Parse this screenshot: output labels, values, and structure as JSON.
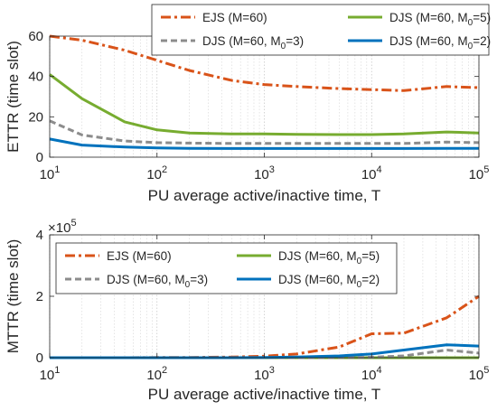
{
  "chart_data": [
    {
      "type": "line",
      "xscale": "log",
      "xlabel": "PU average active/inactive time, T",
      "ylabel": "ETTR (time slot)",
      "xlim": [
        10,
        100000
      ],
      "ylim": [
        0,
        60
      ],
      "xticks": [
        10,
        100,
        1000,
        10000,
        100000
      ],
      "xtick_labels": [
        {
          "base": "10",
          "exp": "1"
        },
        {
          "base": "10",
          "exp": "2"
        },
        {
          "base": "10",
          "exp": "3"
        },
        {
          "base": "10",
          "exp": "4"
        },
        {
          "base": "10",
          "exp": "5"
        }
      ],
      "yticks": [
        0,
        20,
        40,
        60
      ],
      "ytick_labels": [
        "0",
        "20",
        "40",
        "60"
      ],
      "grid": "x-major-and-minor",
      "legend_placement": "top (overlapping plot)",
      "legend_columns": 2,
      "series": [
        {
          "name": "EJS (M=60)",
          "name_base": "EJS (M=60)",
          "name_sub": "",
          "name_tail": "",
          "color": "#D95319",
          "style": "dash-dot",
          "x": [
            10,
            20,
            50,
            100,
            200,
            500,
            1000,
            2000,
            5000,
            10000,
            20000,
            50000,
            100000
          ],
          "y": [
            63,
            58,
            53,
            48,
            43,
            38,
            36,
            35,
            34,
            33.5,
            33,
            35,
            34.5
          ]
        },
        {
          "name": "DJS (M=60, M0=5)",
          "name_base": "DJS (M=60, M",
          "name_sub": "0",
          "name_tail": "=5)",
          "color": "#77AC30",
          "style": "solid",
          "x": [
            10,
            20,
            50,
            100,
            200,
            500,
            1000,
            2000,
            5000,
            10000,
            20000,
            50000,
            100000
          ],
          "y": [
            41,
            29,
            17.5,
            13.5,
            12,
            11.5,
            11.5,
            11.3,
            11.2,
            11.2,
            11.5,
            12.5,
            12
          ]
        },
        {
          "name": "DJS (M=60, M0=3)",
          "name_base": "DJS (M=60, M",
          "name_sub": "0",
          "name_tail": "=3)",
          "color": "#8C8C8C",
          "style": "dashed",
          "x": [
            10,
            20,
            50,
            100,
            200,
            500,
            1000,
            2000,
            5000,
            10000,
            20000,
            50000,
            100000
          ],
          "y": [
            18,
            11,
            8,
            7.2,
            7,
            6.8,
            6.8,
            6.8,
            6.8,
            6.8,
            6.8,
            7.5,
            7.2
          ]
        },
        {
          "name": "DJS (M=60, M0=2)",
          "name_base": "DJS (M=60, M",
          "name_sub": "0",
          "name_tail": "=2)",
          "color": "#0072BD",
          "style": "solid",
          "x": [
            10,
            20,
            50,
            100,
            200,
            500,
            1000,
            2000,
            5000,
            10000,
            20000,
            50000,
            100000
          ],
          "y": [
            9,
            6,
            5,
            4.6,
            4.4,
            4.3,
            4.3,
            4.3,
            4.3,
            4.3,
            4.3,
            4.4,
            4.4
          ]
        }
      ]
    },
    {
      "type": "line",
      "xscale": "log",
      "xlabel": "PU average active/inactive time, T",
      "ylabel": "MTTR (time slot)",
      "xlim": [
        10,
        100000
      ],
      "ylim": [
        0,
        400000
      ],
      "exponent_label": {
        "base": "×10",
        "exp": "5"
      },
      "xticks": [
        10,
        100,
        1000,
        10000,
        100000
      ],
      "xtick_labels": [
        {
          "base": "10",
          "exp": "1"
        },
        {
          "base": "10",
          "exp": "2"
        },
        {
          "base": "10",
          "exp": "3"
        },
        {
          "base": "10",
          "exp": "4"
        },
        {
          "base": "10",
          "exp": "5"
        }
      ],
      "yticks": [
        0,
        200000,
        400000
      ],
      "ytick_labels": [
        "0",
        "2",
        "4"
      ],
      "grid": "x-major-and-minor",
      "legend_placement": "upper-left",
      "legend_columns": 2,
      "series": [
        {
          "name": "EJS (M=60)",
          "name_base": "EJS (M=60)",
          "name_sub": "",
          "name_tail": "",
          "color": "#D95319",
          "style": "dash-dot",
          "x": [
            10,
            20,
            50,
            100,
            200,
            500,
            1000,
            2000,
            5000,
            10000,
            20000,
            50000,
            100000
          ],
          "y": [
            0,
            0,
            0,
            500,
            1000,
            2000,
            5000,
            12000,
            35000,
            78000,
            80000,
            130000,
            200000
          ]
        },
        {
          "name": "DJS (M=60, M0=5)",
          "name_base": "DJS (M=60, M",
          "name_sub": "0",
          "name_tail": "=5)",
          "color": "#77AC30",
          "style": "solid",
          "x": [
            10,
            20,
            50,
            100,
            200,
            500,
            1000,
            2000,
            5000,
            10000,
            20000,
            50000,
            100000
          ],
          "y": [
            0,
            0,
            0,
            0,
            0,
            0,
            0,
            0,
            0,
            0,
            0,
            0,
            0
          ]
        },
        {
          "name": "DJS (M=60, M0=3)",
          "name_base": "DJS (M=60, M",
          "name_sub": "0",
          "name_tail": "=3)",
          "color": "#8C8C8C",
          "style": "dashed",
          "x": [
            10,
            20,
            50,
            100,
            200,
            500,
            1000,
            2000,
            5000,
            10000,
            20000,
            50000,
            100000
          ],
          "y": [
            0,
            0,
            0,
            0,
            0,
            0,
            0,
            0,
            500,
            1500,
            6000,
            25000,
            15000
          ]
        },
        {
          "name": "DJS (M=60, M0=2)",
          "name_base": "DJS (M=60, M",
          "name_sub": "0",
          "name_tail": "=2)",
          "color": "#0072BD",
          "style": "solid",
          "x": [
            10,
            20,
            50,
            100,
            200,
            500,
            1000,
            2000,
            5000,
            10000,
            20000,
            50000,
            100000
          ],
          "y": [
            0,
            0,
            0,
            0,
            0,
            0,
            500,
            2000,
            6000,
            12000,
            25000,
            42000,
            38000
          ]
        }
      ]
    }
  ]
}
